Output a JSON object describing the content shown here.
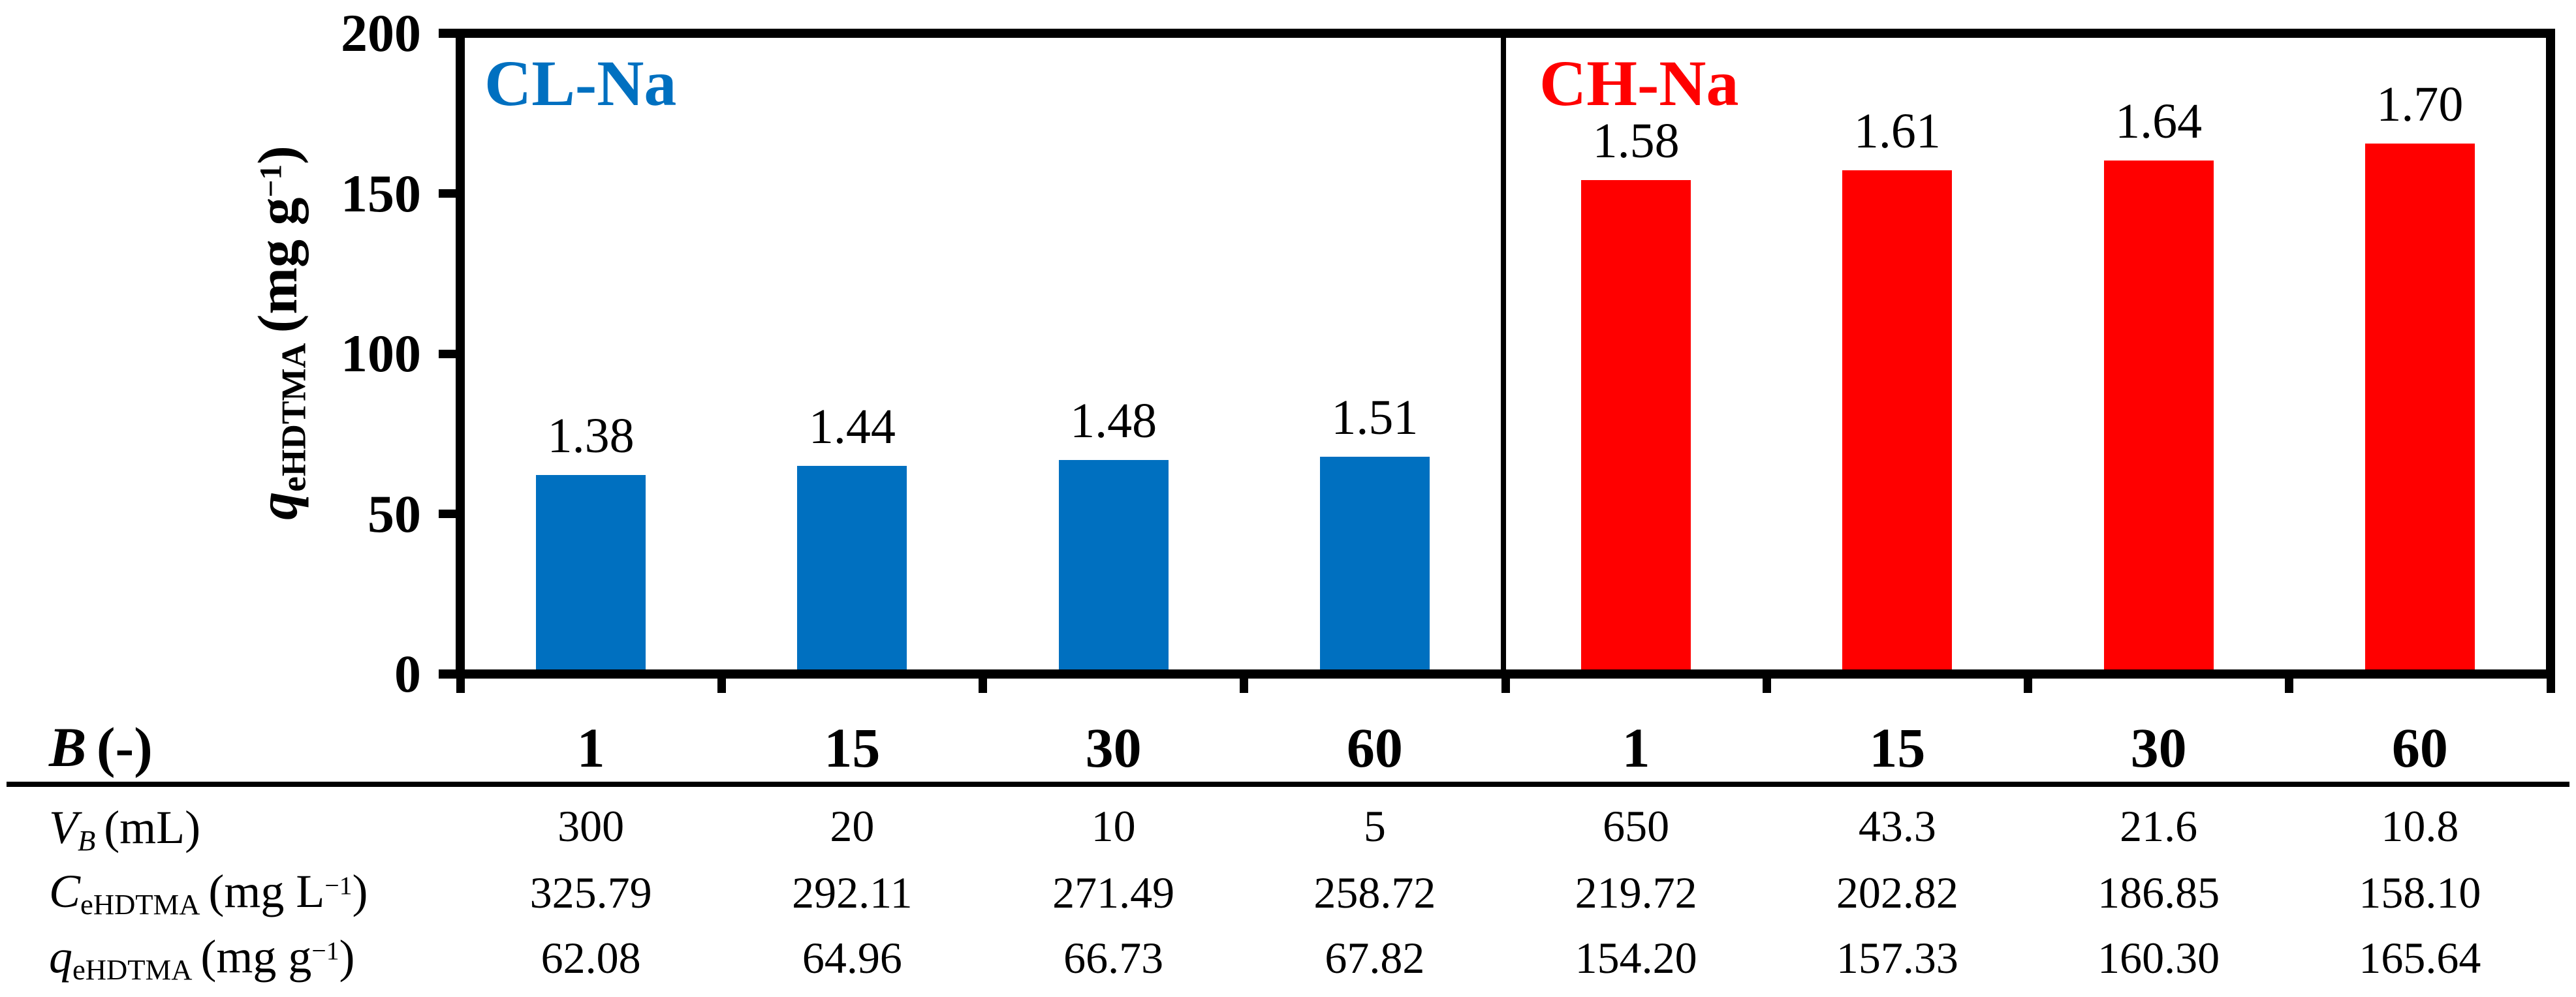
{
  "figure": {
    "panel_labels": [
      {
        "text": "CL-Na",
        "color": "#0070C0"
      },
      {
        "text": "CH-Na",
        "color": "#FF0000"
      }
    ]
  },
  "chart_data": {
    "type": "bar",
    "title": "",
    "ylabel": {
      "symbol": "q",
      "symbol_sub": "eHDTMA",
      "unit_pre": "(mg g",
      "unit_sup": "−1",
      "unit_post": ")"
    },
    "ylim": [
      0,
      200
    ],
    "yticks": [
      0,
      50,
      100,
      150,
      200
    ],
    "ytick_labels": [
      "0",
      "50",
      "100",
      "150",
      "200"
    ],
    "grid": false,
    "legend_position": "none",
    "groups": [
      "CL-Na",
      "CH-Na"
    ],
    "categories": [
      "1",
      "15",
      "30",
      "60",
      "1",
      "15",
      "30",
      "60"
    ],
    "series": [
      {
        "name": "CL-Na",
        "color": "#0070C0",
        "values": [
          62.08,
          64.96,
          66.73,
          67.82
        ],
        "bar_labels": [
          "1.38",
          "1.44",
          "1.48",
          "1.51"
        ]
      },
      {
        "name": "CH-Na",
        "color": "#FF0000",
        "values": [
          154.2,
          157.33,
          160.3,
          165.64
        ],
        "bar_labels": [
          "1.58",
          "1.61",
          "1.64",
          "1.70"
        ]
      }
    ],
    "axis_color": "#000000"
  },
  "table": {
    "rows": [
      {
        "name": "B",
        "label": {
          "symbol": "B",
          "symbol_sub": "",
          "unit_pre": "(-)",
          "unit_sup": "",
          "unit_post": ""
        },
        "values": [
          "1",
          "15",
          "30",
          "60",
          "1",
          "15",
          "30",
          "60"
        ],
        "bold": true
      },
      {
        "name": "VB",
        "label": {
          "symbol": "V",
          "symbol_sub": "B",
          "unit_pre": "(mL)",
          "unit_sup": "",
          "unit_post": ""
        },
        "values": [
          "300",
          "20",
          "10",
          "5",
          "650",
          "43.3",
          "21.6",
          "10.8"
        ],
        "bold": false
      },
      {
        "name": "CeHDTMA",
        "label": {
          "symbol": "C",
          "symbol_sub": "eHDTMA",
          "unit_pre": "(mg L",
          "unit_sup": "−1",
          "unit_post": ")"
        },
        "values": [
          "325.79",
          "292.11",
          "271.49",
          "258.72",
          "219.72",
          "202.82",
          "186.85",
          "158.10"
        ],
        "bold": false
      },
      {
        "name": "qeHDTMA",
        "label": {
          "symbol": "q",
          "symbol_sub": "eHDTMA",
          "unit_pre": "(mg g",
          "unit_sup": "−1",
          "unit_post": ")"
        },
        "values": [
          "62.08",
          "64.96",
          "66.73",
          "67.82",
          "154.20",
          "157.33",
          "160.30",
          "165.64"
        ],
        "bold": false
      }
    ]
  }
}
